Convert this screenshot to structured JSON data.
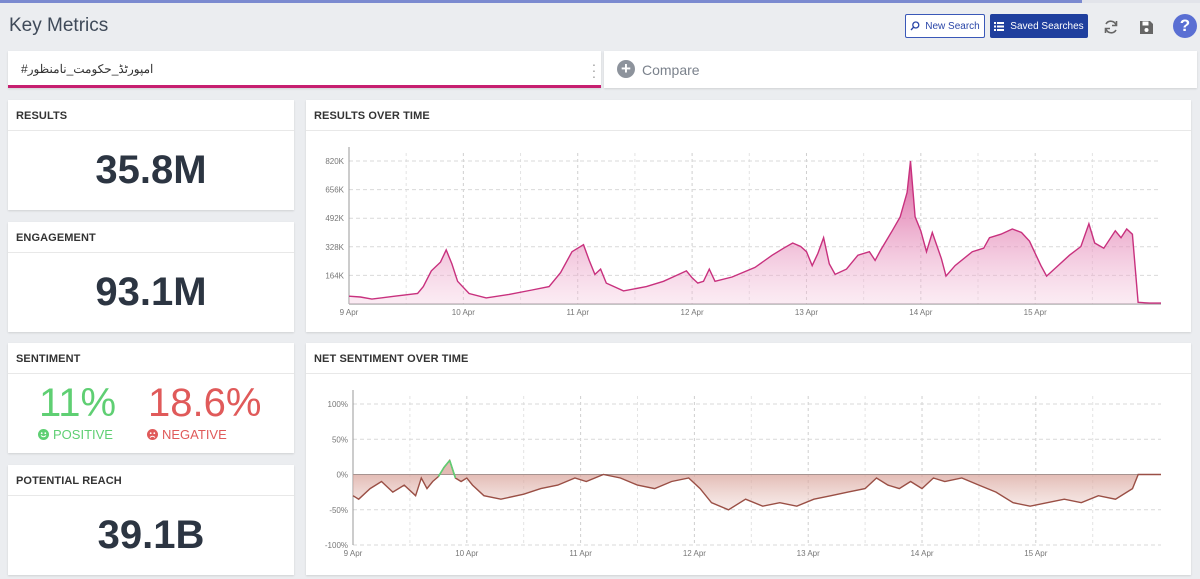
{
  "page": {
    "title": "Key Metrics"
  },
  "toolbar": {
    "new_search_label": "New Search",
    "saved_searches_label": "Saved Searches",
    "help_label": "?"
  },
  "query": {
    "text": "#امپورٹڈ_حکومت_نامنظور"
  },
  "compare": {
    "label": "Compare"
  },
  "results": {
    "label": "RESULTS",
    "value": "35.8M"
  },
  "engagement": {
    "label": "ENGAGEMENT",
    "value": "93.1M"
  },
  "sentiment": {
    "label": "SENTIMENT",
    "positive_value": "11%",
    "positive_label": "POSITIVE",
    "negative_value": "18.6%",
    "negative_label": "NEGATIVE"
  },
  "reach": {
    "label": "POTENTIAL REACH",
    "value": "39.1B"
  },
  "colors": {
    "accent": "#c61f70",
    "positive": "#5fcf73",
    "negative": "#e05a5a",
    "brand": "#1f3f9e"
  },
  "chart_data": [
    {
      "type": "area",
      "title": "RESULTS OVER TIME",
      "ylim": [
        0,
        900000
      ],
      "y_ticks": [
        "164K",
        "328K",
        "492K",
        "656K",
        "820K"
      ],
      "x_ticks": [
        "9 Apr",
        "10 Apr",
        "11 Apr",
        "12 Apr",
        "13 Apr",
        "14 Apr",
        "15 Apr"
      ],
      "grid": true,
      "series": [
        {
          "points": [
            [
              0.0,
              45000
            ],
            [
              0.1,
              40000
            ],
            [
              0.2,
              28000
            ],
            [
              0.4,
              45000
            ],
            [
              0.6,
              60000
            ],
            [
              0.65,
              100000
            ],
            [
              0.72,
              190000
            ],
            [
              0.8,
              240000
            ],
            [
              0.85,
              310000
            ],
            [
              0.9,
              230000
            ],
            [
              0.95,
              130000
            ],
            [
              1.05,
              60000
            ],
            [
              1.2,
              35000
            ],
            [
              1.4,
              55000
            ],
            [
              1.6,
              80000
            ],
            [
              1.75,
              100000
            ],
            [
              1.85,
              180000
            ],
            [
              1.95,
              300000
            ],
            [
              2.05,
              340000
            ],
            [
              2.1,
              250000
            ],
            [
              2.15,
              170000
            ],
            [
              2.2,
              200000
            ],
            [
              2.25,
              120000
            ],
            [
              2.4,
              75000
            ],
            [
              2.6,
              100000
            ],
            [
              2.75,
              130000
            ],
            [
              2.85,
              160000
            ],
            [
              2.95,
              190000
            ],
            [
              3.0,
              150000
            ],
            [
              3.05,
              120000
            ],
            [
              3.1,
              130000
            ],
            [
              3.15,
              200000
            ],
            [
              3.2,
              130000
            ],
            [
              3.35,
              155000
            ],
            [
              3.55,
              210000
            ],
            [
              3.7,
              280000
            ],
            [
              3.8,
              320000
            ],
            [
              3.88,
              350000
            ],
            [
              3.95,
              330000
            ],
            [
              4.0,
              300000
            ],
            [
              4.05,
              220000
            ],
            [
              4.1,
              290000
            ],
            [
              4.15,
              380000
            ],
            [
              4.2,
              230000
            ],
            [
              4.25,
              170000
            ],
            [
              4.35,
              200000
            ],
            [
              4.45,
              280000
            ],
            [
              4.55,
              300000
            ],
            [
              4.6,
              250000
            ],
            [
              4.65,
              310000
            ],
            [
              4.75,
              420000
            ],
            [
              4.82,
              500000
            ],
            [
              4.88,
              640000
            ],
            [
              4.91,
              820000
            ],
            [
              4.95,
              500000
            ],
            [
              5.0,
              420000
            ],
            [
              5.05,
              300000
            ],
            [
              5.1,
              410000
            ],
            [
              5.18,
              260000
            ],
            [
              5.22,
              160000
            ],
            [
              5.3,
              220000
            ],
            [
              5.45,
              300000
            ],
            [
              5.55,
              320000
            ],
            [
              5.6,
              380000
            ],
            [
              5.7,
              400000
            ],
            [
              5.8,
              430000
            ],
            [
              5.88,
              410000
            ],
            [
              5.95,
              360000
            ],
            [
              6.05,
              220000
            ],
            [
              6.1,
              160000
            ],
            [
              6.2,
              220000
            ],
            [
              6.3,
              280000
            ],
            [
              6.4,
              330000
            ],
            [
              6.47,
              460000
            ],
            [
              6.52,
              350000
            ],
            [
              6.6,
              320000
            ],
            [
              6.7,
              420000
            ],
            [
              6.75,
              380000
            ],
            [
              6.8,
              430000
            ],
            [
              6.85,
              400000
            ],
            [
              6.9,
              10000
            ],
            [
              7.0,
              5000
            ],
            [
              7.1,
              5000
            ]
          ]
        }
      ]
    },
    {
      "type": "area",
      "title": "NET SENTIMENT OVER TIME",
      "ylim": [
        -100,
        100
      ],
      "y_ticks": [
        "-100%",
        "-50%",
        "0%",
        "50%",
        "100%"
      ],
      "x_ticks": [
        "9 Apr",
        "10 Apr",
        "11 Apr",
        "12 Apr",
        "13 Apr",
        "14 Apr",
        "15 Apr"
      ],
      "grid": true,
      "series": [
        {
          "points": [
            [
              0.0,
              -30
            ],
            [
              0.05,
              -35
            ],
            [
              0.15,
              -20
            ],
            [
              0.25,
              -10
            ],
            [
              0.35,
              -25
            ],
            [
              0.45,
              -15
            ],
            [
              0.55,
              -30
            ],
            [
              0.6,
              -5
            ],
            [
              0.65,
              -20
            ],
            [
              0.7,
              -10
            ],
            [
              0.75,
              -3
            ],
            [
              0.8,
              10
            ],
            [
              0.85,
              20
            ],
            [
              0.9,
              -5
            ],
            [
              0.95,
              -10
            ],
            [
              1.0,
              -5
            ],
            [
              1.05,
              -15
            ],
            [
              1.15,
              -30
            ],
            [
              1.3,
              -35
            ],
            [
              1.5,
              -28
            ],
            [
              1.65,
              -20
            ],
            [
              1.8,
              -15
            ],
            [
              1.95,
              -5
            ],
            [
              2.05,
              -10
            ],
            [
              2.2,
              0
            ],
            [
              2.35,
              -5
            ],
            [
              2.5,
              -15
            ],
            [
              2.65,
              -20
            ],
            [
              2.8,
              -10
            ],
            [
              2.95,
              -5
            ],
            [
              3.05,
              -20
            ],
            [
              3.15,
              -40
            ],
            [
              3.3,
              -50
            ],
            [
              3.45,
              -35
            ],
            [
              3.6,
              -45
            ],
            [
              3.75,
              -40
            ],
            [
              3.9,
              -45
            ],
            [
              4.05,
              -35
            ],
            [
              4.2,
              -30
            ],
            [
              4.35,
              -25
            ],
            [
              4.5,
              -20
            ],
            [
              4.6,
              -5
            ],
            [
              4.7,
              -15
            ],
            [
              4.8,
              -20
            ],
            [
              4.9,
              -10
            ],
            [
              5.0,
              -20
            ],
            [
              5.1,
              -5
            ],
            [
              5.2,
              -10
            ],
            [
              5.35,
              -5
            ],
            [
              5.5,
              -15
            ],
            [
              5.65,
              -25
            ],
            [
              5.8,
              -40
            ],
            [
              5.95,
              -45
            ],
            [
              6.1,
              -40
            ],
            [
              6.25,
              -35
            ],
            [
              6.4,
              -40
            ],
            [
              6.55,
              -30
            ],
            [
              6.7,
              -35
            ],
            [
              6.85,
              -20
            ],
            [
              6.9,
              0
            ],
            [
              7.0,
              0
            ],
            [
              7.1,
              0
            ]
          ]
        }
      ]
    }
  ]
}
